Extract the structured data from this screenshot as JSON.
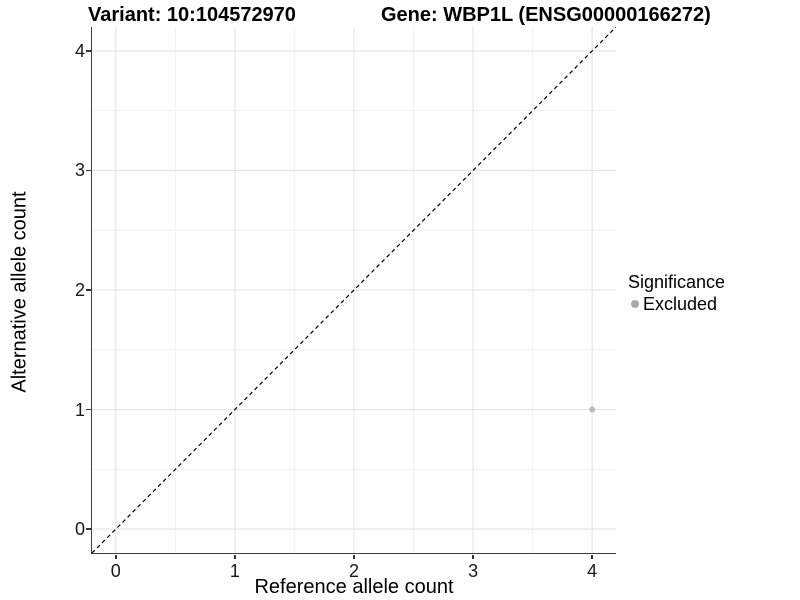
{
  "chart_data": {
    "type": "scatter",
    "titles": [
      "Variant: 10:104572970",
      "Gene: WBP1L (ENSG00000166272)"
    ],
    "xlabel": "Reference allele count",
    "ylabel": "Alternative allele count",
    "xlim": [
      -0.2,
      4.2
    ],
    "ylim": [
      -0.2,
      4.2
    ],
    "x_ticks": [
      0,
      1,
      2,
      3,
      4
    ],
    "y_ticks": [
      0,
      1,
      2,
      3,
      4
    ],
    "grid": "major+minor",
    "points": [
      {
        "x": 4,
        "y": 1,
        "group": "Excluded"
      }
    ],
    "reference_line": {
      "kind": "identity (y=x)",
      "from": [
        -0.2,
        -0.2
      ],
      "to": [
        4.2,
        4.2
      ],
      "style": "dashed",
      "color": "#000000"
    },
    "legend": {
      "title": "Significance",
      "position": "right",
      "entries": [
        {
          "label": "Excluded",
          "color": "#a8a8a8",
          "marker": "circle"
        }
      ]
    },
    "colors": {
      "point": "#bcbcbc",
      "grid_major": "#e3e3e3",
      "grid_minor": "#f1f1f1",
      "axis_line": "#3f3f3f",
      "tick": "#333333",
      "background": "#ffffff"
    }
  }
}
